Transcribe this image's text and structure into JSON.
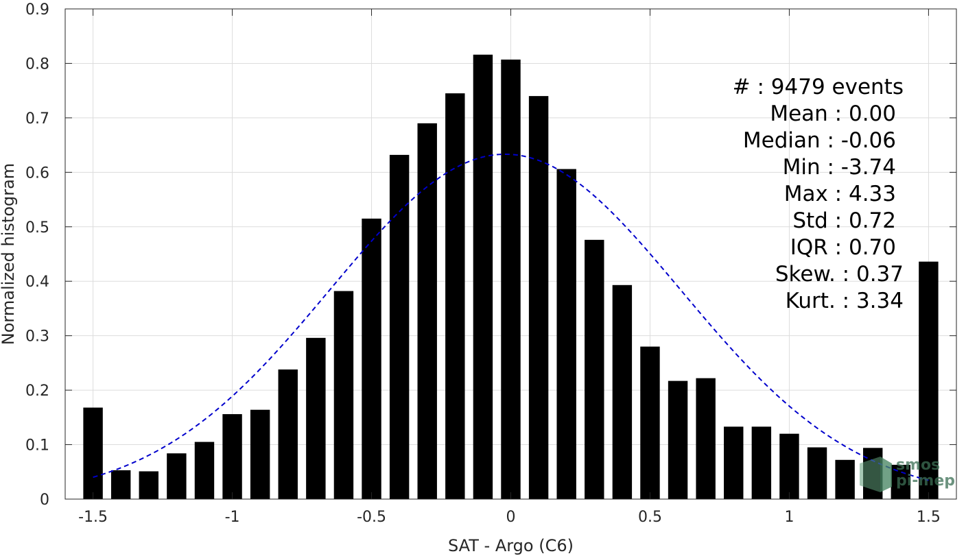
{
  "chart_data": {
    "type": "bar",
    "xlabel": "SAT - Argo (C6)",
    "ylabel": "Normalized histogram",
    "xlim": [
      -1.6,
      1.6
    ],
    "ylim": [
      0,
      0.9
    ],
    "grid": true,
    "x_ticks": [
      -1.5,
      -1,
      -0.5,
      0,
      0.5,
      1,
      1.5
    ],
    "x_tick_labels": [
      "-1.5",
      "-1",
      "-0.5",
      "0",
      "0.5",
      "1",
      "1.5"
    ],
    "y_ticks": [
      0,
      0.1,
      0.2,
      0.3,
      0.4,
      0.5,
      0.6,
      0.7,
      0.8,
      0.9
    ],
    "y_tick_labels": [
      "0",
      "0.1",
      "0.2",
      "0.3",
      "0.4",
      "0.5",
      "0.6",
      "0.7",
      "0.8",
      "0.9"
    ],
    "bar_color": "#000000",
    "bin_width": 0.1,
    "bar_width_fraction": 0.7,
    "x": [
      -1.5,
      -1.4,
      -1.3,
      -1.2,
      -1.1,
      -1.0,
      -0.9,
      -0.8,
      -0.7,
      -0.6,
      -0.5,
      -0.4,
      -0.3,
      -0.2,
      -0.1,
      0.0,
      0.1,
      0.2,
      0.3,
      0.4,
      0.5,
      0.6,
      0.7,
      0.8,
      0.9,
      1.0,
      1.1,
      1.2,
      1.3,
      1.4,
      1.5
    ],
    "values": [
      0.168,
      0.053,
      0.051,
      0.084,
      0.105,
      0.156,
      0.164,
      0.238,
      0.296,
      0.382,
      0.515,
      0.632,
      0.69,
      0.745,
      0.816,
      0.807,
      0.74,
      0.606,
      0.476,
      0.393,
      0.28,
      0.217,
      0.222,
      0.133,
      0.133,
      0.12,
      0.095,
      0.072,
      0.094,
      0.063,
      0.436
    ],
    "fit_curve": {
      "style": "dashed",
      "color": "#0000cc",
      "x_range": [
        -1.5,
        1.5
      ],
      "mean": -0.02,
      "std": 0.63
    },
    "stats": [
      "#  : 9479 events",
      "Mean : 0.00",
      "Median : -0.06",
      "Min : -3.74",
      "Max : 4.33",
      "Std : 0.72",
      "IQR : 0.70",
      "Skew. : 0.37",
      "Kurt. : 3.34"
    ],
    "logo": {
      "line1": "smos",
      "line2": "pi-mep"
    }
  }
}
